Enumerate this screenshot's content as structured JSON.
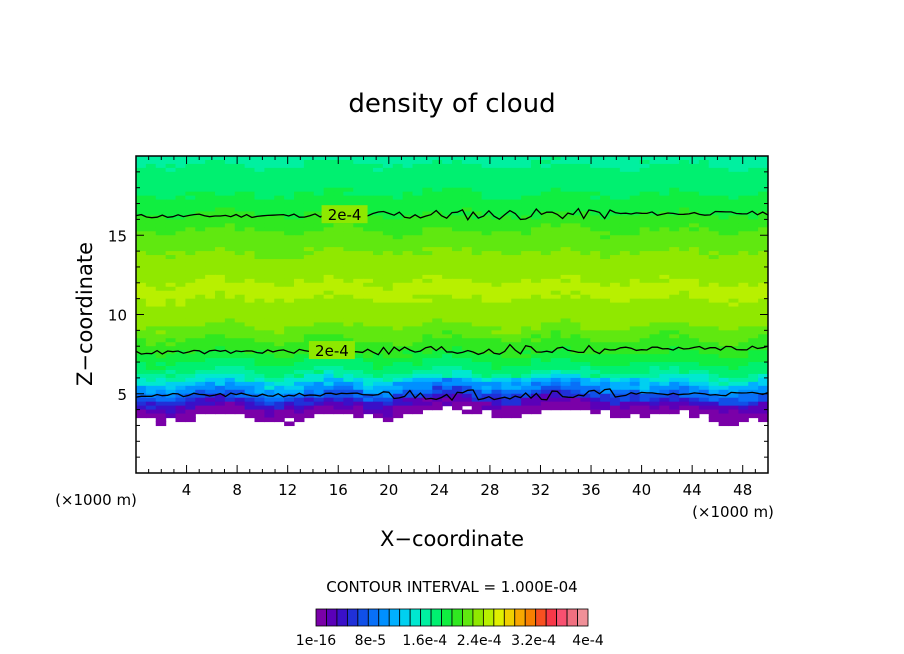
{
  "chart_data": {
    "type": "heatmap",
    "title": "density of cloud",
    "xlabel": "X−coordinate",
    "ylabel": "Z−coordinate",
    "x_unit_left": "(×1000 m)",
    "x_unit_right": "(×1000 m)",
    "xlim": [
      0,
      50
    ],
    "ylim": [
      0,
      20
    ],
    "x_ticks": [
      4,
      8,
      12,
      16,
      20,
      24,
      28,
      32,
      36,
      40,
      44,
      48
    ],
    "x_tick_labels": [
      "4",
      "8",
      "12",
      "16",
      "20",
      "24",
      "28",
      "32",
      "36",
      "40",
      "44",
      "48"
    ],
    "y_ticks": [
      5,
      10,
      15
    ],
    "y_tick_labels": [
      "5",
      "10",
      "15"
    ],
    "grid": false,
    "contour_interval_label": "CONTOUR INTERVAL = 1.000E-04",
    "contours": [
      {
        "label": "2e-4",
        "z_left": 16.2,
        "z_right": 16.4
      },
      {
        "label": "2e-4",
        "z_left": 7.6,
        "z_right": 7.9
      },
      {
        "label": "",
        "z_left": 4.9,
        "z_right": 5.0
      }
    ],
    "profile": [
      {
        "z": 0.0,
        "value": 0
      },
      {
        "z": 3.5,
        "value": 0
      },
      {
        "z": 3.6,
        "value": 1e-16
      },
      {
        "z": 4.1,
        "value": 2e-05
      },
      {
        "z": 4.6,
        "value": 6e-05
      },
      {
        "z": 5.2,
        "value": 0.0001
      },
      {
        "z": 5.8,
        "value": 0.00014
      },
      {
        "z": 6.4,
        "value": 0.00017
      },
      {
        "z": 7.6,
        "value": 0.0002
      },
      {
        "z": 9.5,
        "value": 0.000235
      },
      {
        "z": 11.5,
        "value": 0.00025
      },
      {
        "z": 13.0,
        "value": 0.00024
      },
      {
        "z": 15.0,
        "value": 0.00022
      },
      {
        "z": 16.3,
        "value": 0.0002
      },
      {
        "z": 18.0,
        "value": 0.00018
      },
      {
        "z": 20.0,
        "value": 0.000165
      }
    ],
    "colorbar": {
      "colors": [
        "#7a00a8",
        "#5a00b8",
        "#3a10c8",
        "#2030d8",
        "#1050e8",
        "#0870f8",
        "#0090ff",
        "#00b0ff",
        "#00d0f0",
        "#00e8d0",
        "#00f0a0",
        "#00f070",
        "#10ee40",
        "#30e820",
        "#60e810",
        "#90e800",
        "#b8f000",
        "#e0f000",
        "#f0d000",
        "#f8a800",
        "#f88000",
        "#f85020",
        "#f83848",
        "#f85070",
        "#f07080",
        "#f09098"
      ],
      "tick_labels": [
        "1e-16",
        "8e-5",
        "1.6e-4",
        "2.4e-4",
        "3.2e-4",
        "4e-4"
      ],
      "min": 1e-16,
      "max": 0.0004
    }
  }
}
